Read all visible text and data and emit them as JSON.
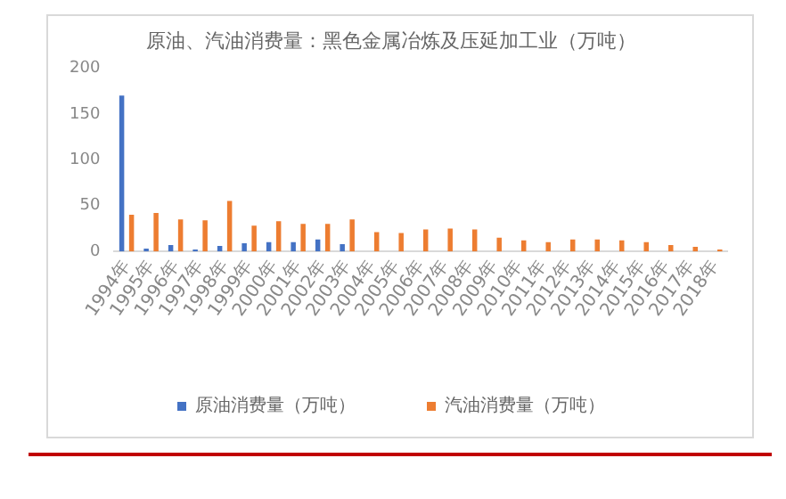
{
  "chart_data": {
    "type": "bar",
    "title": "原油、汽油消费量：黑色金属冶炼及压延加工业（万吨）",
    "categories": [
      "1994年",
      "1995年",
      "1996年",
      "1997年",
      "1998年",
      "1999年",
      "2000年",
      "2001年",
      "2002年",
      "2003年",
      "2004年",
      "2005年",
      "2006年",
      "2007年",
      "2008年",
      "2009年",
      "2010年",
      "2011年",
      "2012年",
      "2013年",
      "2014年",
      "2015年",
      "2016年",
      "2017年",
      "2018年"
    ],
    "series": [
      {
        "name": "原油消费量（万吨）",
        "color": "#4472c4",
        "values": [
          170,
          3,
          7,
          2,
          6,
          9,
          10,
          10,
          13,
          8,
          null,
          null,
          null,
          null,
          null,
          null,
          null,
          null,
          null,
          null,
          null,
          null,
          null,
          null,
          null
        ]
      },
      {
        "name": "汽油消费量（万吨）",
        "color": "#ed7d31",
        "values": [
          40,
          42,
          35,
          34,
          55,
          28,
          33,
          30,
          30,
          35,
          21,
          20,
          24,
          25,
          24,
          15,
          12,
          10,
          13,
          13,
          12,
          10,
          7,
          5,
          2
        ]
      }
    ],
    "ylim": [
      0,
      200
    ],
    "yticks": [
      0,
      50,
      100,
      150,
      200
    ],
    "grid": false,
    "legend": "bottom"
  }
}
